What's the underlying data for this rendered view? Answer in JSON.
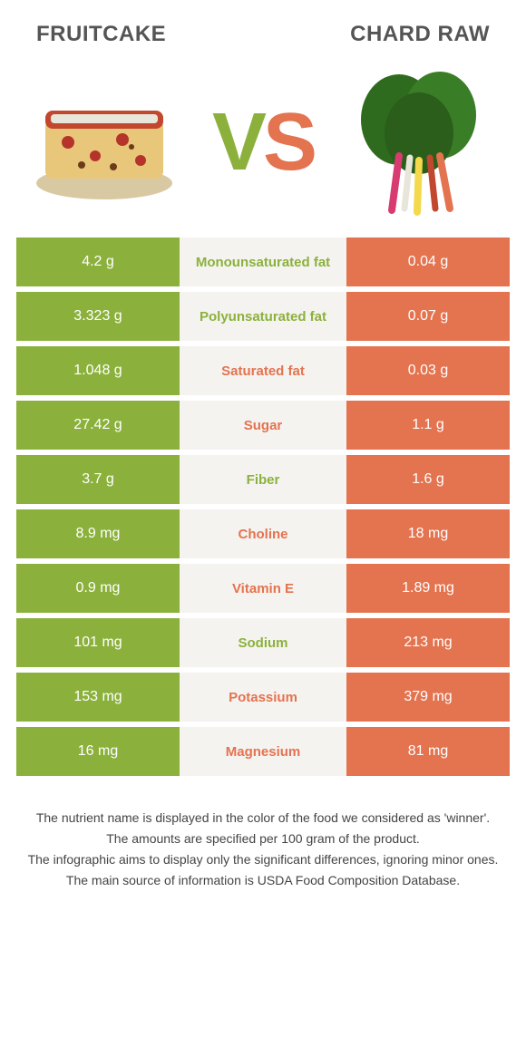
{
  "header": {
    "left_title": "Fruitcake",
    "right_title": "Chard Raw"
  },
  "vs": {
    "v": "V",
    "s": "S"
  },
  "colors": {
    "left": "#8bb13c",
    "right": "#e4734f",
    "mid_bg": "#f5f3f0"
  },
  "rows": [
    {
      "label": "Monounsaturated fat",
      "left": "4.2 g",
      "right": "0.04 g",
      "winner": "left"
    },
    {
      "label": "Polyunsaturated fat",
      "left": "3.323 g",
      "right": "0.07 g",
      "winner": "left"
    },
    {
      "label": "Saturated fat",
      "left": "1.048 g",
      "right": "0.03 g",
      "winner": "right"
    },
    {
      "label": "Sugar",
      "left": "27.42 g",
      "right": "1.1 g",
      "winner": "right"
    },
    {
      "label": "Fiber",
      "left": "3.7 g",
      "right": "1.6 g",
      "winner": "left"
    },
    {
      "label": "Choline",
      "left": "8.9 mg",
      "right": "18 mg",
      "winner": "right"
    },
    {
      "label": "Vitamin E",
      "left": "0.9 mg",
      "right": "1.89 mg",
      "winner": "right"
    },
    {
      "label": "Sodium",
      "left": "101 mg",
      "right": "213 mg",
      "winner": "left"
    },
    {
      "label": "Potassium",
      "left": "153 mg",
      "right": "379 mg",
      "winner": "right"
    },
    {
      "label": "Magnesium",
      "left": "16 mg",
      "right": "81 mg",
      "winner": "right"
    }
  ],
  "footer": {
    "l1": "The nutrient name is displayed in the color of the food we considered as 'winner'.",
    "l2": "The amounts are specified per 100 gram of the product.",
    "l3": "The infographic aims to display only the significant differences, ignoring minor ones.",
    "l4": "The main source of information is USDA Food Composition Database."
  }
}
